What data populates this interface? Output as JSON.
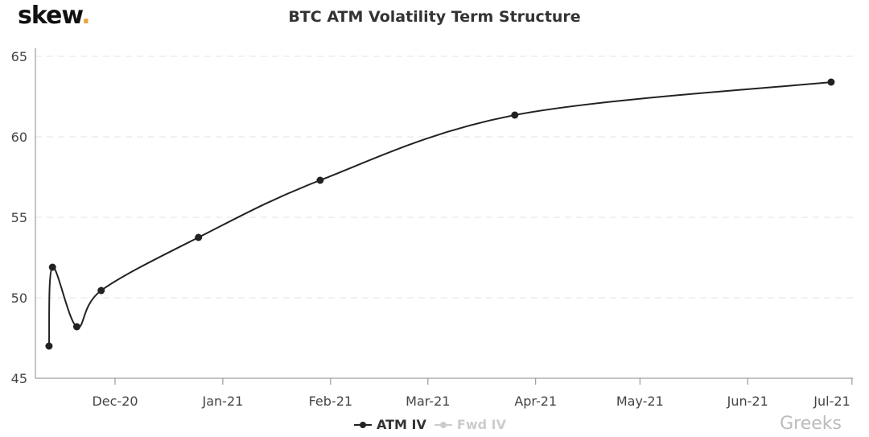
{
  "logo": {
    "text": "skew",
    "dot": "."
  },
  "watermark": "Greeks",
  "chart_data": {
    "type": "line",
    "title": "BTC ATM Volatility Term Structure",
    "xlabel": "",
    "ylabel": "",
    "ylim": [
      45,
      65
    ],
    "yticks": [
      45,
      50,
      55,
      60,
      65
    ],
    "xticks": [
      {
        "date": "2020-12-01",
        "label": "Dec-20"
      },
      {
        "date": "2021-01-01",
        "label": "Jan-21"
      },
      {
        "date": "2021-02-01",
        "label": "Feb-21"
      },
      {
        "date": "2021-03-01",
        "label": "Mar-21"
      },
      {
        "date": "2021-04-01",
        "label": "Apr-21"
      },
      {
        "date": "2021-05-01",
        "label": "May-21"
      },
      {
        "date": "2021-06-01",
        "label": "Jun-21"
      },
      {
        "date": "2021-07-01",
        "label": "Jul-21"
      }
    ],
    "grid": true,
    "legend_placement": "bottom",
    "series": [
      {
        "name": "ATM IV",
        "color": "#222222",
        "visible": true,
        "x": [
          "2020-11-12",
          "2020-11-13",
          "2020-11-20",
          "2020-11-27",
          "2020-12-25",
          "2021-01-29",
          "2021-03-26",
          "2021-06-25"
        ],
        "y": [
          47.0,
          51.9,
          48.2,
          50.45,
          53.75,
          57.3,
          61.35,
          63.4
        ]
      },
      {
        "name": "Fwd IV",
        "color": "#cccccc",
        "visible": false,
        "x": [],
        "y": []
      }
    ]
  }
}
